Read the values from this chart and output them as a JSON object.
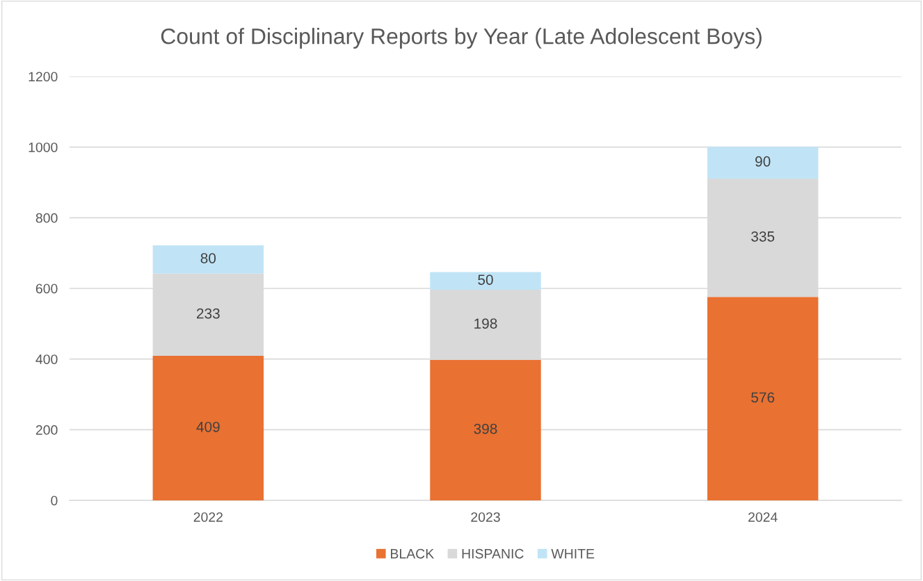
{
  "chart_data": {
    "type": "bar",
    "title": "Count of Disciplinary Reports by Year (Late Adolescent Boys)",
    "categories": [
      "2022",
      "2023",
      "2024"
    ],
    "series": [
      {
        "name": "BLACK",
        "color": "#e97132",
        "values": [
          409,
          398,
          576
        ]
      },
      {
        "name": "HISPANIC",
        "color": "#d9d9d9",
        "values": [
          233,
          198,
          335
        ]
      },
      {
        "name": "WHITE",
        "color": "#c0e4f5",
        "values": [
          80,
          50,
          90
        ]
      }
    ],
    "stacked": true,
    "data_labels": true,
    "ylim": [
      0,
      1200
    ],
    "yticks": [
      0,
      200,
      400,
      600,
      800,
      1000,
      1200
    ],
    "grid": "y",
    "legend": "bottom"
  }
}
